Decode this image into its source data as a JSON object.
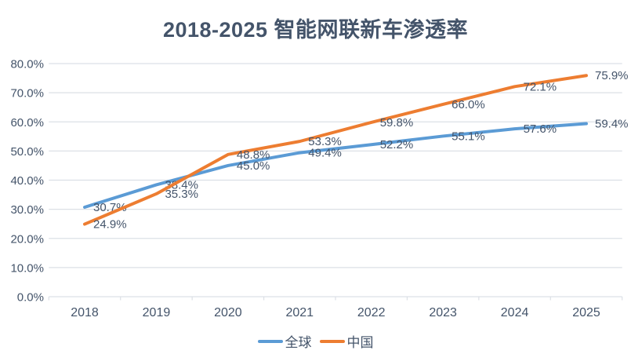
{
  "title": "2018-2025 智能网联新车渗透率",
  "chart_data": {
    "type": "line",
    "categories": [
      "2018",
      "2019",
      "2020",
      "2021",
      "2022",
      "2023",
      "2024",
      "2025"
    ],
    "series": [
      {
        "name": "全球",
        "color": "#5B9BD5",
        "values": [
          30.7,
          38.4,
          45.0,
          49.4,
          52.2,
          55.1,
          57.6,
          59.4
        ]
      },
      {
        "name": "中国",
        "color": "#ED7D31",
        "values": [
          24.9,
          35.3,
          48.8,
          53.3,
          59.8,
          66.0,
          72.1,
          75.9
        ]
      }
    ],
    "ylim": [
      0,
      80
    ],
    "ytick_step": 10,
    "ytick_labels": [
      "0.0%",
      "10.0%",
      "20.0%",
      "30.0%",
      "40.0%",
      "50.0%",
      "60.0%",
      "70.0%",
      "80.0%"
    ],
    "grid": true,
    "legend_position": "bottom",
    "data_labels_shown": true,
    "data_label_format": "one_decimal_percent"
  },
  "colors": {
    "title_text": "#44546A",
    "axis_text": "#44546A",
    "data_label_text": "#44546A",
    "gridline": "#DCE0E6",
    "background": "#FFFFFF"
  }
}
